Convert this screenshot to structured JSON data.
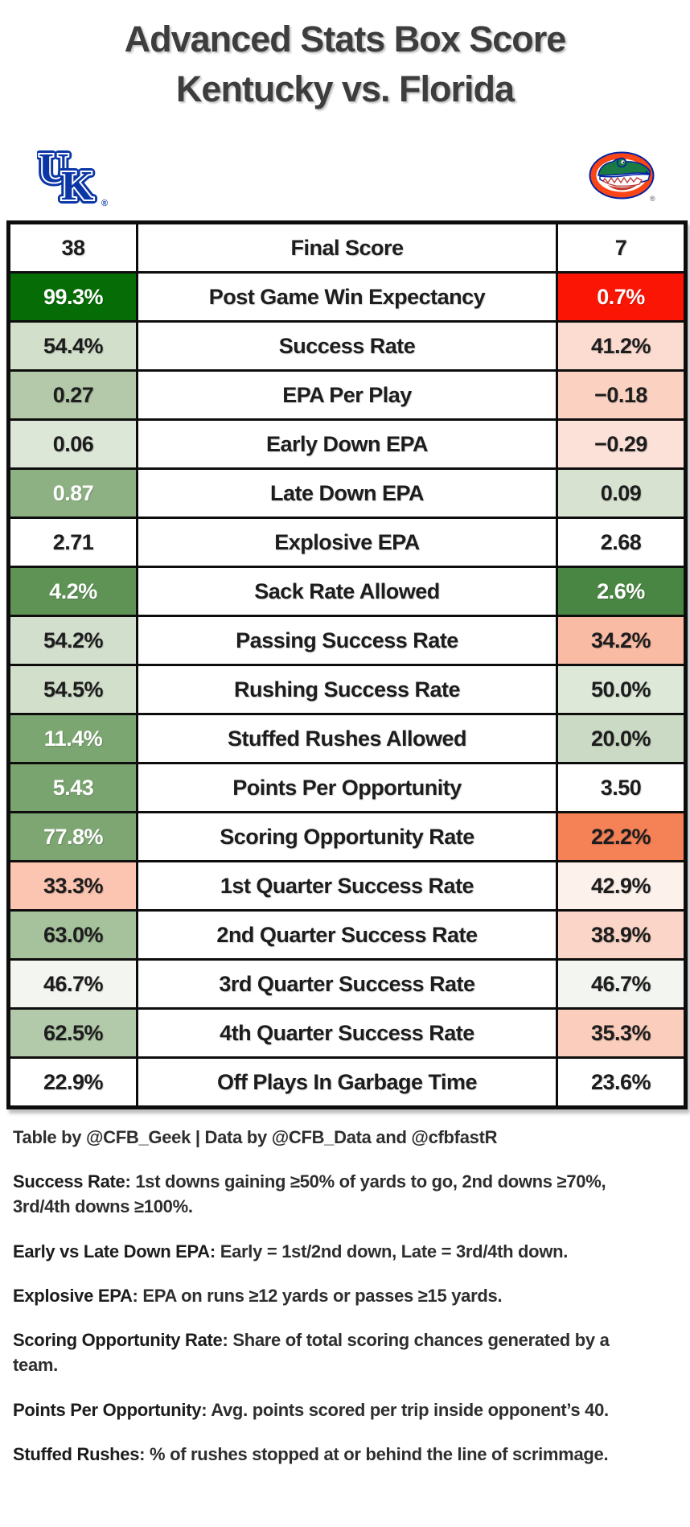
{
  "header": {
    "title_line1": "Advanced Stats Box Score",
    "title_line2": "Kentucky vs. Florida"
  },
  "teams": {
    "left": {
      "name": "Kentucky",
      "logo": "kentucky-uk-logo",
      "primary_color": "#0a36a6"
    },
    "right": {
      "name": "Florida",
      "logo": "florida-gators-logo",
      "orange": "#fa4616",
      "green": "#1a7a44",
      "blue": "#0021a5"
    }
  },
  "table": {
    "default_text_color": "#1d1d1d",
    "rows": [
      {
        "metric": "Final Score",
        "left": {
          "value": "38",
          "bg": "#ffffff"
        },
        "right": {
          "value": "7",
          "bg": "#ffffff"
        }
      },
      {
        "metric": "Post Game Win Expectancy",
        "left": {
          "value": "99.3%",
          "bg": "#066c06",
          "fg": "#ffffff"
        },
        "right": {
          "value": "0.7%",
          "bg": "#fa1505",
          "fg": "#ffffff"
        }
      },
      {
        "metric": "Success Rate",
        "left": {
          "value": "54.4%",
          "bg": "#d2dfcb"
        },
        "right": {
          "value": "41.2%",
          "bg": "#fcdcd1"
        }
      },
      {
        "metric": "EPA Per Play",
        "left": {
          "value": "0.27",
          "bg": "#b3c9a9"
        },
        "right": {
          "value": "−0.18",
          "bg": "#fbd2c2"
        }
      },
      {
        "metric": "Early Down EPA",
        "left": {
          "value": "0.06",
          "bg": "#dde7d8"
        },
        "right": {
          "value": "−0.29",
          "bg": "#fce1d8"
        }
      },
      {
        "metric": "Late Down EPA",
        "left": {
          "value": "0.87",
          "bg": "#8db183",
          "fg": "#ffffff"
        },
        "right": {
          "value": "0.09",
          "bg": "#d7e2d1"
        }
      },
      {
        "metric": "Explosive EPA",
        "left": {
          "value": "2.71",
          "bg": "#ffffff"
        },
        "right": {
          "value": "2.68",
          "bg": "#ffffff"
        }
      },
      {
        "metric": "Sack Rate Allowed",
        "left": {
          "value": "4.2%",
          "bg": "#5e9355",
          "fg": "#ffffff"
        },
        "right": {
          "value": "2.6%",
          "bg": "#4a8643",
          "fg": "#ffffff"
        }
      },
      {
        "metric": "Passing Success Rate",
        "left": {
          "value": "54.2%",
          "bg": "#d3dfcd"
        },
        "right": {
          "value": "34.2%",
          "bg": "#f9bba4"
        }
      },
      {
        "metric": "Rushing Success Rate",
        "left": {
          "value": "54.5%",
          "bg": "#d2dfcb"
        },
        "right": {
          "value": "50.0%",
          "bg": "#dde8d8"
        }
      },
      {
        "metric": "Stuffed Rushes Allowed",
        "left": {
          "value": "11.4%",
          "bg": "#7ca671",
          "fg": "#ffffff"
        },
        "right": {
          "value": "20.0%",
          "bg": "#cbdac4"
        }
      },
      {
        "metric": "Points Per Opportunity",
        "left": {
          "value": "5.43",
          "bg": "#7aa46f",
          "fg": "#ffffff"
        },
        "right": {
          "value": "3.50",
          "bg": "#ffffff"
        }
      },
      {
        "metric": "Scoring Opportunity Rate",
        "left": {
          "value": "77.8%",
          "bg": "#7da673",
          "fg": "#ffffff"
        },
        "right": {
          "value": "22.2%",
          "bg": "#f58157"
        }
      },
      {
        "metric": "1st Quarter Success Rate",
        "left": {
          "value": "33.3%",
          "bg": "#fcc5b1"
        },
        "right": {
          "value": "42.9%",
          "bg": "#fdf1ec"
        }
      },
      {
        "metric": "2nd Quarter Success Rate",
        "left": {
          "value": "63.0%",
          "bg": "#a6c29c"
        },
        "right": {
          "value": "38.9%",
          "bg": "#fbd6c8"
        }
      },
      {
        "metric": "3rd Quarter Success Rate",
        "left": {
          "value": "46.7%",
          "bg": "#f2f5f0"
        },
        "right": {
          "value": "46.7%",
          "bg": "#f2f5f0"
        }
      },
      {
        "metric": "4th Quarter Success Rate",
        "left": {
          "value": "62.5%",
          "bg": "#b3caaa"
        },
        "right": {
          "value": "35.3%",
          "bg": "#fbcdbc"
        }
      },
      {
        "metric": "Off Plays In Garbage Time",
        "left": {
          "value": "22.9%",
          "bg": "#ffffff"
        },
        "right": {
          "value": "23.6%",
          "bg": "#ffffff"
        }
      }
    ]
  },
  "footer": {
    "credit": "Table by @CFB_Geek | Data by @CFB_Data and @cfbfastR",
    "notes": [
      {
        "term": "Success Rate",
        "text": "1st downs gaining ≥50% of yards to go, 2nd downs ≥70%, 3rd/4th downs ≥100%."
      },
      {
        "term": "Early vs Late Down EPA",
        "text": "Early = 1st/2nd down, Late = 3rd/4th down."
      },
      {
        "term": "Explosive EPA",
        "text": "EPA on runs ≥12 yards or passes ≥15 yards."
      },
      {
        "term": "Scoring Opportunity Rate",
        "text": "Share of total scoring chances generated by a team."
      },
      {
        "term": "Points Per Opportunity",
        "text": "Avg. points scored per trip inside opponent’s 40."
      },
      {
        "term": "Stuffed Rushes",
        "text": "% of rushes stopped at or behind the line of scrimmage."
      }
    ]
  }
}
